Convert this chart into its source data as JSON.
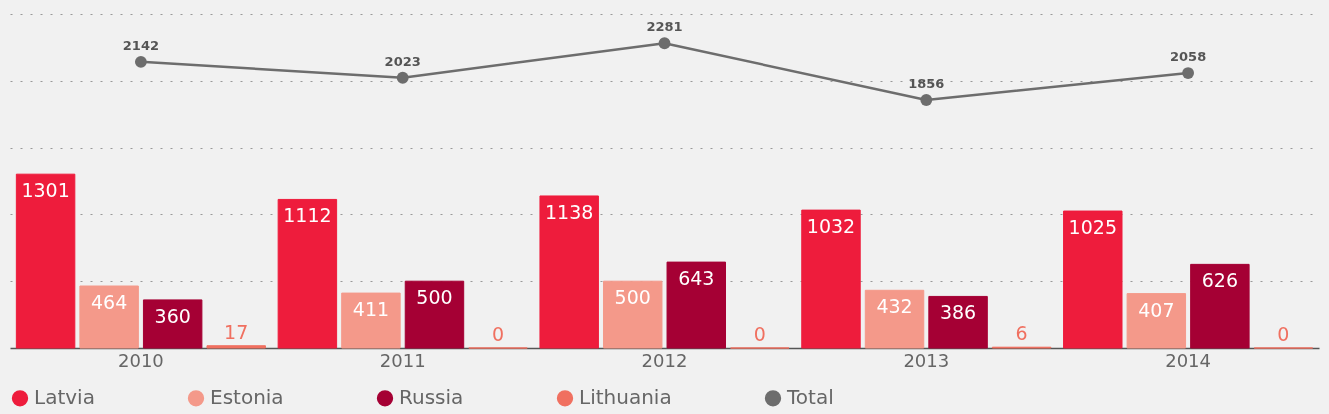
{
  "chart_data": {
    "type": "bar",
    "categories": [
      "2010",
      "2011",
      "2012",
      "2013",
      "2014"
    ],
    "series": [
      {
        "name": "Latvia",
        "color": "#ee1c3c",
        "values": [
          1301,
          1112,
          1138,
          1032,
          1025
        ]
      },
      {
        "name": "Estonia",
        "color": "#f4998a",
        "values": [
          464,
          411,
          500,
          432,
          407
        ]
      },
      {
        "name": "Russia",
        "color": "#a50034",
        "values": [
          360,
          500,
          643,
          386,
          626
        ]
      },
      {
        "name": "Lithuania",
        "color": "#f07060",
        "values": [
          17,
          0,
          0,
          6,
          0
        ]
      },
      {
        "name": "Total",
        "type": "line",
        "color": "#6d6d6d",
        "values": [
          2142,
          2023,
          2281,
          1856,
          2058
        ]
      }
    ],
    "ylim": [
      0,
      2500
    ],
    "yticks": [
      {
        "value": 500,
        "label": null
      },
      {
        "value": 1000,
        "label": null
      },
      {
        "value": 1500,
        "label": null
      },
      {
        "value": 2000,
        "label": null
      },
      {
        "value": 2500,
        "label": null
      }
    ],
    "tick_labels": "x",
    "grid": "y",
    "legend": "bottom left",
    "data_labels": true,
    "marker": "circle"
  }
}
